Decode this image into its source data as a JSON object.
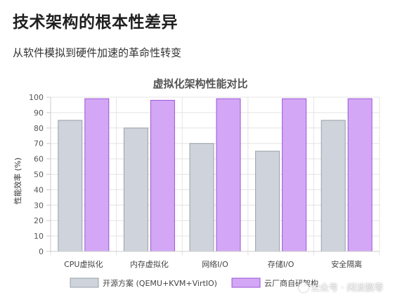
{
  "header": {
    "title": "技术架构的根本性差异",
    "subtitle": "从软件模拟到硬件加速的革命性转变"
  },
  "watermark": "公众号 · 闲淡飘零",
  "chart_data": {
    "type": "bar",
    "title": "虚拟化架构性能对比",
    "xlabel": "",
    "ylabel": "性能效率 (%)",
    "ylim": [
      0,
      100
    ],
    "yticks": [
      0,
      10,
      20,
      30,
      40,
      50,
      60,
      70,
      80,
      90,
      100
    ],
    "grid": true,
    "legend_position": "bottom",
    "categories": [
      "CPU虚拟化",
      "内存虚拟化",
      "网络I/O",
      "存储I/O",
      "安全隔离"
    ],
    "series": [
      {
        "name": "开源方案 (QEMU+KVM+VirtIO)",
        "values": [
          85,
          80,
          70,
          65,
          85
        ],
        "fill": "#cfd3db",
        "stroke": "#9aa0a9"
      },
      {
        "name": "云厂商自研架构",
        "values": [
          99,
          98,
          99,
          99,
          99
        ],
        "fill": "#d3a7f5",
        "stroke": "#9b56d6"
      }
    ]
  }
}
